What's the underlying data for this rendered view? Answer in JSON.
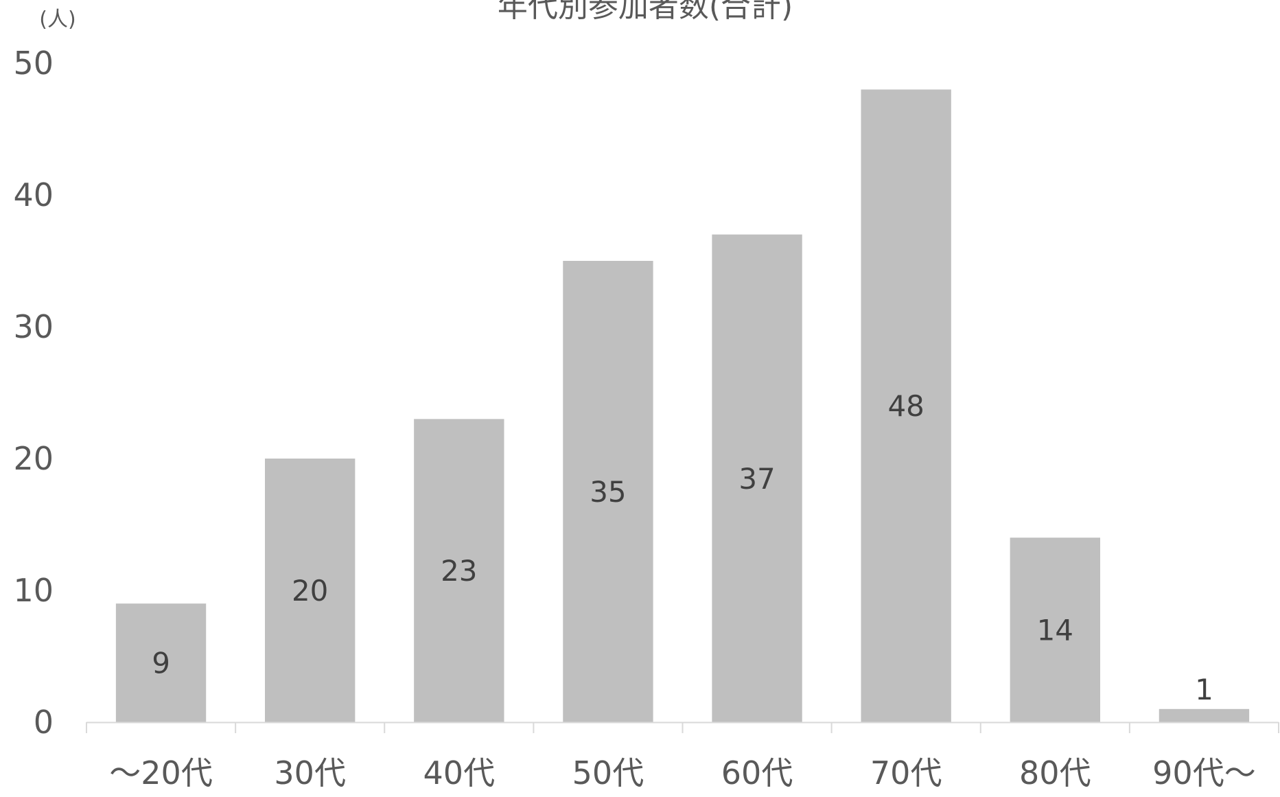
{
  "chart_data": {
    "type": "bar",
    "title": "年代別参加者数(合計)",
    "y_unit_label": "(人)",
    "categories": [
      "～20代",
      "30代",
      "40代",
      "50代",
      "60代",
      "70代",
      "80代",
      "90代～"
    ],
    "values": [
      9,
      20,
      23,
      35,
      37,
      48,
      14,
      1
    ],
    "ylim": [
      0,
      50
    ],
    "yticks": [
      0,
      10,
      20,
      30,
      40,
      50
    ],
    "grid": false,
    "data_labels": true,
    "colors": {
      "bar": "#bfbfbf",
      "axis": "#d9d9d9",
      "text": "#595959",
      "data_label": "#404040"
    }
  }
}
